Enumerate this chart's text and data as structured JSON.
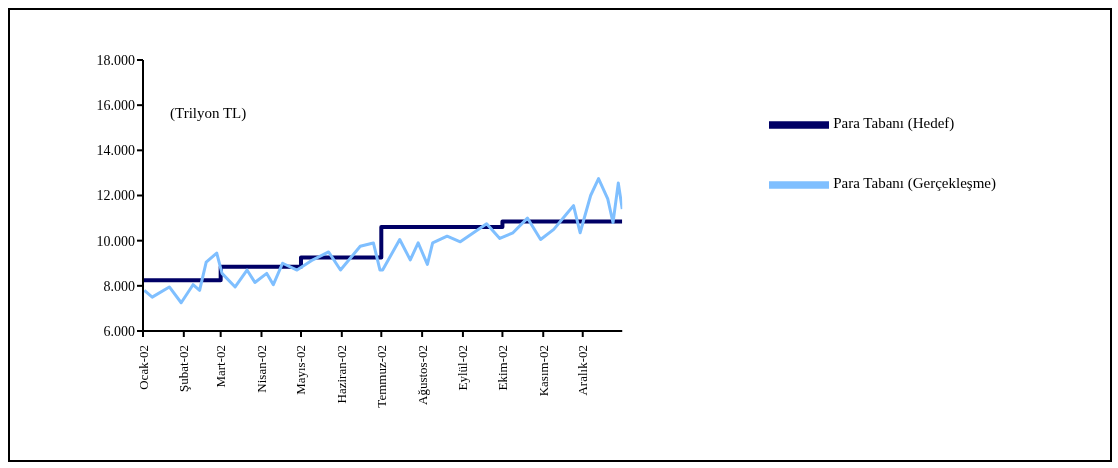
{
  "chart_data": {
    "type": "line",
    "legend": "right",
    "annotations": [
      "(Trilyon TL)"
    ],
    "xlim": [
      "2002-01-01",
      "2002-12-31"
    ],
    "xticks": [
      {
        "value": "2002-01-01",
        "label": "Ocak-02"
      },
      {
        "value": "2002-02-01",
        "label": "Şubat-02"
      },
      {
        "value": "2002-03-01",
        "label": "Mart-02"
      },
      {
        "value": "2002-04-01",
        "label": "Nisan-02"
      },
      {
        "value": "2002-05-01",
        "label": "Mayıs-02"
      },
      {
        "value": "2002-06-01",
        "label": "Haziran-02"
      },
      {
        "value": "2002-07-01",
        "label": "Temmuz-02"
      },
      {
        "value": "2002-08-01",
        "label": "Ağustos-02"
      },
      {
        "value": "2002-09-01",
        "label": "Eylül-02"
      },
      {
        "value": "2002-10-01",
        "label": "Ekim-02"
      },
      {
        "value": "2002-11-01",
        "label": "Kasım-02"
      },
      {
        "value": "2002-12-01",
        "label": "Aralık-02"
      }
    ],
    "ylim": [
      6000,
      18000
    ],
    "yticks": [
      {
        "value": 6000,
        "label": "6.000"
      },
      {
        "value": 8000,
        "label": "8.000"
      },
      {
        "value": 10000,
        "label": "10.000"
      },
      {
        "value": 12000,
        "label": "12.000"
      },
      {
        "value": 14000,
        "label": "14.000"
      },
      {
        "value": 16000,
        "label": "16.000"
      },
      {
        "value": 18000,
        "label": "18.000"
      }
    ],
    "series": [
      {
        "name": "Para Tabanı (Hedef)",
        "type": "step",
        "color": "#000066",
        "x": [
          "2002-01-01",
          "2002-03-01",
          "2002-05-01",
          "2002-07-01",
          "2002-10-01",
          "2002-12-31"
        ],
        "values": [
          8250,
          8850,
          9250,
          10600,
          10850,
          10850
        ]
      },
      {
        "name": "Para Tabanı (Gerçekleşme)",
        "type": "line",
        "color": "#7fbfff",
        "x": [
          "2002-01-02",
          "2002-01-08",
          "2002-01-21",
          "2002-01-30",
          "2002-02-08",
          "2002-02-13",
          "2002-02-18",
          "2002-02-26",
          "2002-03-02",
          "2002-03-12",
          "2002-03-21",
          "2002-03-27",
          "2002-04-05",
          "2002-04-10",
          "2002-04-17",
          "2002-04-28",
          "2002-05-10",
          "2002-05-22",
          "2002-05-31",
          "2002-06-15",
          "2002-06-25",
          "2002-06-30",
          "2002-07-02",
          "2002-07-15",
          "2002-07-23",
          "2002-07-29",
          "2002-08-05",
          "2002-08-09",
          "2002-08-20",
          "2002-08-30",
          "2002-09-09",
          "2002-09-19",
          "2002-09-29",
          "2002-10-09",
          "2002-10-20",
          "2002-10-30",
          "2002-11-09",
          "2002-11-19",
          "2002-11-24",
          "2002-11-29",
          "2002-12-07",
          "2002-12-13",
          "2002-12-20",
          "2002-12-24",
          "2002-12-28",
          "2002-12-31"
        ],
        "values": [
          7800,
          7500,
          7950,
          7250,
          8050,
          7800,
          9050,
          9450,
          8550,
          7950,
          8700,
          8150,
          8550,
          8050,
          9000,
          8700,
          9150,
          9500,
          8700,
          9750,
          9900,
          8700,
          8700,
          10050,
          9150,
          9900,
          8950,
          9900,
          10200,
          9950,
          10350,
          10750,
          10100,
          10350,
          11000,
          10050,
          10500,
          11200,
          11550,
          10350,
          12000,
          12750,
          11850,
          10800,
          12550,
          11400
        ]
      }
    ]
  }
}
